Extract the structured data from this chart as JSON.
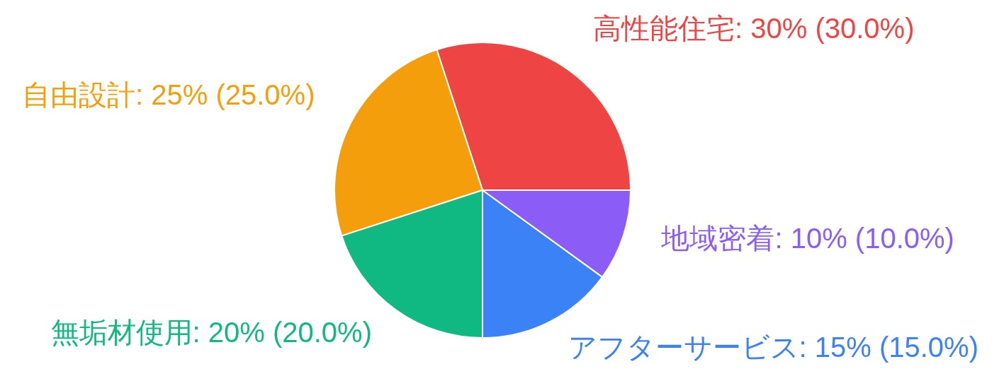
{
  "chart_data": {
    "type": "pie",
    "categories": [
      "高性能住宅",
      "自由設計",
      "無垢材使用",
      "アフターサービス",
      "地域密着"
    ],
    "values": [
      30,
      25,
      20,
      15,
      10
    ],
    "colors": [
      "#ef4444",
      "#f59e0b",
      "#10b981",
      "#3b82f6",
      "#8b5cf6"
    ],
    "value_labels": [
      "30% (30.0%)",
      "25% (25.0%)",
      "20% (20.0%)",
      "15% (15.0%)",
      "10% (10.0%)"
    ]
  }
}
